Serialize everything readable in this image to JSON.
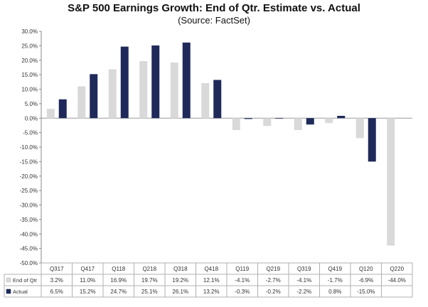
{
  "chart_data": {
    "type": "bar",
    "title": "S&P 500 Earnings Growth:  End of Qtr. Estimate vs. Actual",
    "subtitle": "(Source: FactSet)",
    "categories": [
      "Q317",
      "Q417",
      "Q118",
      "Q218",
      "Q318",
      "Q418",
      "Q119",
      "Q219",
      "Q319",
      "Q419",
      "Q120",
      "Q220"
    ],
    "series": [
      {
        "name": "End of Qtr",
        "color": "#d9d9d9",
        "values": [
          3.2,
          11.0,
          16.9,
          19.7,
          19.2,
          12.1,
          -4.1,
          -2.7,
          -4.1,
          -1.7,
          -6.9,
          -44.0
        ],
        "labels": [
          "3.2%",
          "11.0%",
          "16.9%",
          "19.7%",
          "19.2%",
          "12.1%",
          "-4.1%",
          "-2.7%",
          "-4.1%",
          "-1.7%",
          "-6.9%",
          "-44.0%"
        ]
      },
      {
        "name": "Actual",
        "color": "#1f2a5a",
        "values": [
          6.5,
          15.2,
          24.7,
          25.1,
          26.1,
          13.2,
          -0.3,
          -0.2,
          -2.2,
          0.8,
          -15.0,
          null
        ],
        "labels": [
          "6.5%",
          "15.2%",
          "24.7%",
          "25.1%",
          "26.1%",
          "13.2%",
          "-0.3%",
          "-0.2%",
          "-2.2%",
          "0.8%",
          "-15.0%",
          ""
        ]
      }
    ],
    "ylim": [
      -50,
      30
    ],
    "yticks": [
      "30.0%",
      "25.0%",
      "20.0%",
      "15.0%",
      "10.0%",
      "5.0%",
      "0.0%",
      "-5.0%",
      "-10.0%",
      "-15.0%",
      "-20.0%",
      "-25.0%",
      "-30.0%",
      "-35.0%",
      "-40.0%",
      "-45.0%",
      "-50.0%"
    ],
    "grid": false,
    "legend": "data-table-left"
  }
}
